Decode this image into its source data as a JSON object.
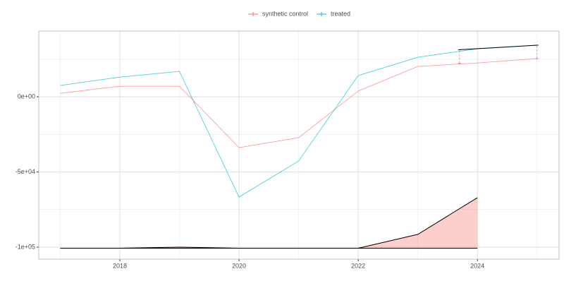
{
  "chart_data": {
    "type": "line",
    "x": [
      2017,
      2018,
      2019,
      2020,
      2021,
      2022,
      2023,
      2024,
      2025
    ],
    "series": [
      {
        "name": "synthetic control",
        "color": "#F8766D",
        "values": [
          2300,
          7000,
          7000,
          -33800,
          -27200,
          3800,
          20200,
          22500,
          25400
        ]
      },
      {
        "name": "treated",
        "color": "#00BFC4",
        "values": [
          7500,
          13100,
          16900,
          -66700,
          -42700,
          14100,
          26300,
          31900,
          34300
        ]
      }
    ],
    "gap_area": {
      "x": [
        2017,
        2018,
        2019,
        2020,
        2021,
        2022,
        2023,
        2024
      ],
      "values": [
        -100700,
        -100700,
        -100000,
        -100700,
        -100700,
        -100700,
        -91500,
        -67100
      ],
      "base": -100700,
      "color": "#F8766D"
    },
    "gap_markers": {
      "x": [
        2023.7,
        2025
      ],
      "treated": [
        31300,
        34300
      ],
      "synthetic": [
        22200,
        25400
      ],
      "color": "#000000"
    },
    "xlim": [
      2016.64,
      2025.37
    ],
    "xticks": [
      2018,
      2020,
      2022,
      2024
    ],
    "xminor": [
      2017,
      2019,
      2021,
      2023,
      2025
    ],
    "ylim": [
      -108000,
      43700
    ],
    "yticks": [
      {
        "value": -100000,
        "label": "-1e+05"
      },
      {
        "value": -50000,
        "label": "-5e+04"
      },
      {
        "value": 0,
        "label": "0e+00"
      }
    ],
    "yminor": [
      -75000,
      -25000,
      25000
    ],
    "grid": true,
    "legend": "top"
  }
}
